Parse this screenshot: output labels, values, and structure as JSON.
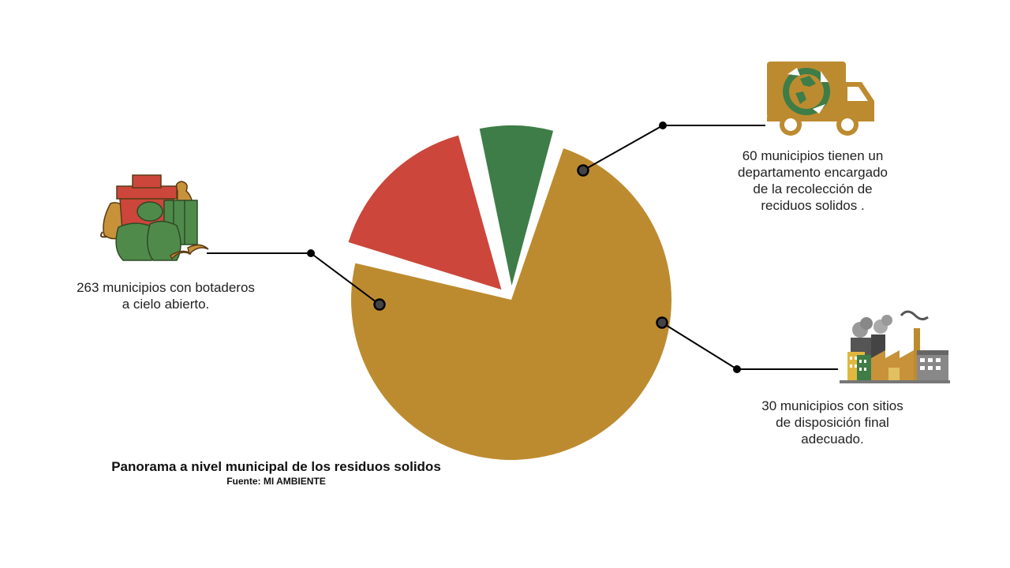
{
  "colors": {
    "botaderos": "#BD8B2F",
    "recoleccion": "#CC463B",
    "disposicion": "#3E7D48",
    "leader": "#000000",
    "dot": "#444444"
  },
  "chart_data": {
    "type": "pie",
    "title": "Panorama a nivel municipal de los residuos solidos",
    "source": "Fuente: MI AMBIENTE",
    "slices": [
      {
        "label": "263 municipios con botaderos a cielo abierto.",
        "value": 263,
        "color": "#BD8B2F"
      },
      {
        "label": "60 municipios tienen un departamento encargado de la recolección de reciduos solidos .",
        "value": 60,
        "color": "#CC463B"
      },
      {
        "label": "30 municipios con sitios de disposición final adecuado.",
        "value": 30,
        "color": "#3E7D48"
      }
    ]
  },
  "labels": {
    "botaderos": "263 municipios con botaderos\na cielo abierto.",
    "recoleccion": "60 municipios tienen un\ndepartamento encargado\nde la recolección de\nreciduos solidos .",
    "disposicion": "30 municipios con sitios\nde disposición final\nadecuado."
  },
  "icons": {
    "botaderos": "garbage-bags-icon",
    "recoleccion": "recycling-truck-icon",
    "disposicion": "factory-icon"
  }
}
